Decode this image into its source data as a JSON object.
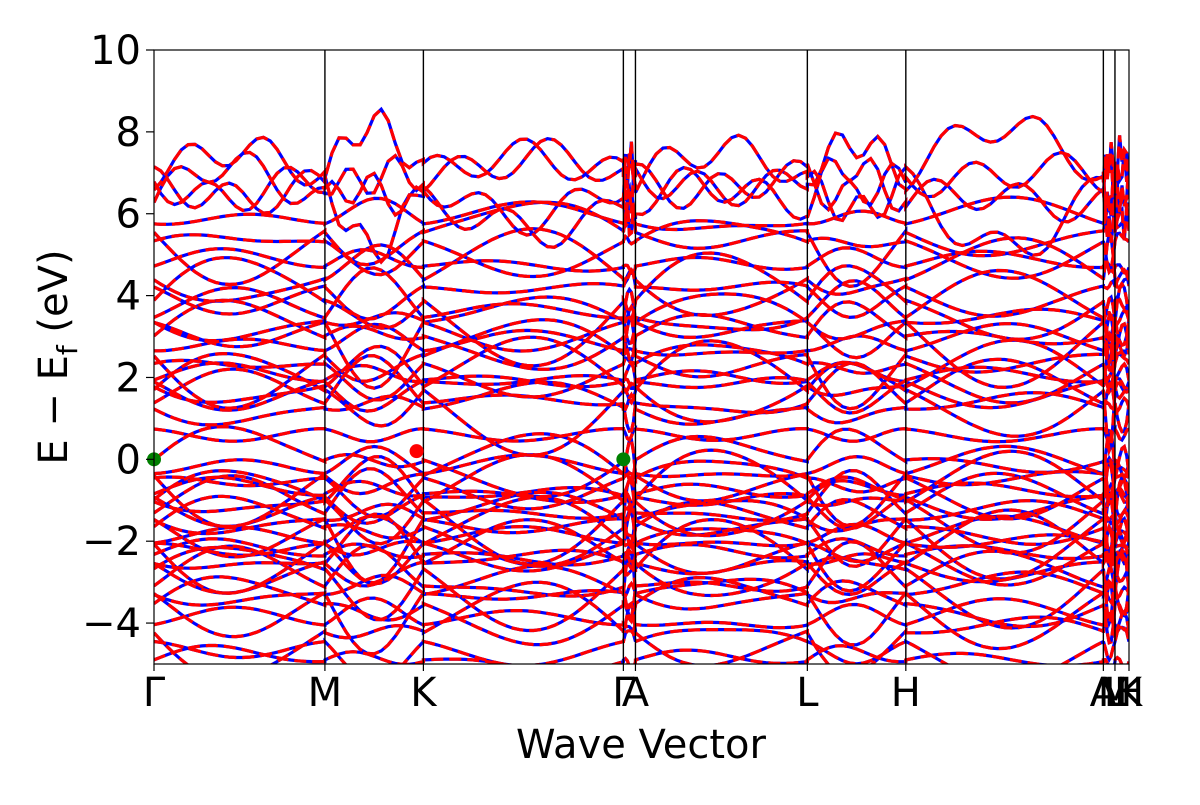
{
  "chart_data": {
    "type": "line",
    "title": "",
    "xlabel": "Wave Vector",
    "ylabel_main": "E − E",
    "ylabel_sub": "f",
    "ylabel_unit": " (eV)",
    "ylim": [
      -5,
      10
    ],
    "yticks": [
      {
        "value": -4,
        "label": "−4"
      },
      {
        "value": -2,
        "label": "−2"
      },
      {
        "value": 0,
        "label": "0"
      },
      {
        "value": 2,
        "label": "2"
      },
      {
        "value": 4,
        "label": "4"
      },
      {
        "value": 6,
        "label": "6"
      },
      {
        "value": 8,
        "label": "8"
      },
      {
        "value": 10,
        "label": "10"
      }
    ],
    "kpath_fraction": [
      0,
      0.1753,
      0.2763,
      0.4814,
      0.4938,
      0.6701,
      0.7711,
      0.9737,
      0.9856,
      1.0
    ],
    "kpoint_labels": [
      "Γ",
      "M",
      "K",
      "Γ",
      "A",
      "L",
      "H",
      "A",
      "M",
      "K"
    ],
    "kpoint_label_extras": [
      "",
      "",
      "",
      "",
      "",
      "",
      "",
      "",
      "L",
      "H"
    ],
    "series": [
      {
        "name": "",
        "color": "#0000ff",
        "style": "solid"
      },
      {
        "name": "",
        "color": "#ff0000",
        "style": "dashed"
      }
    ],
    "band_edges": [
      {
        "k_fraction": 0.0,
        "energy": 0.0,
        "color": "#008000"
      },
      {
        "k_fraction": 0.2693,
        "energy": 0.2,
        "color": "#ff0000"
      },
      {
        "k_fraction": 0.4814,
        "energy": 0.0,
        "color": "#008000"
      }
    ],
    "grid": false,
    "legend": "none"
  }
}
